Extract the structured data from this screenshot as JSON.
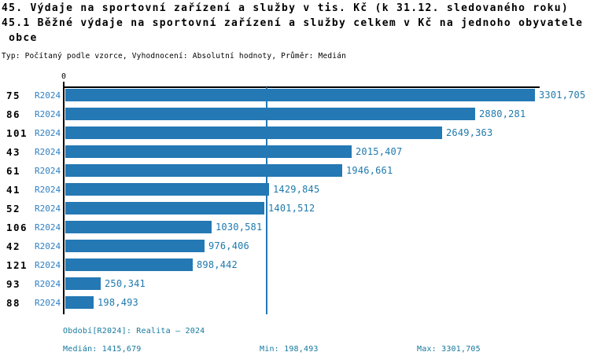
{
  "header": {
    "title_line1": "45. Výdaje na sportovní zařízení a služby v tis. Kč (k 31.12. sledovaného roku)",
    "title_line2": "45.1 Běžné výdaje na sportovní zařízení a služby celkem v Kč na jednoho obyvatele",
    "title_line3": " obce",
    "meta": "Typ: Počítaný podle vzorce, Vyhodnocení: Absolutní hodnoty, Průměr: Medián"
  },
  "chart_data": {
    "type": "bar",
    "orientation": "horizontal",
    "title": "45.1 Běžné výdaje na sportovní zařízení a služby celkem v Kč na jednoho obyvatele obce",
    "axis_origin_label": "0",
    "categories": [
      "75",
      "86",
      "101",
      "43",
      "61",
      "41",
      "52",
      "106",
      "42",
      "121",
      "93",
      "88"
    ],
    "series_label": "R2024",
    "values": [
      3301.705,
      2880.281,
      2649.363,
      2015.407,
      1946.661,
      1429.845,
      1401.512,
      1030.581,
      976.406,
      898.442,
      250.341,
      198.493
    ],
    "value_labels": [
      "3301,705",
      "2880,281",
      "2649,363",
      "2015,407",
      "1946,661",
      "1429,845",
      "1401,512",
      "1030,581",
      "976,406",
      "898,442",
      "250,341",
      "198,493"
    ],
    "xlim": [
      0,
      3301.705
    ],
    "median_value": 1415.679,
    "grid": false,
    "legend_position": "none"
  },
  "footer": {
    "period": "Období[R2024]: Realita – 2024",
    "median": "Medián: 1415,679",
    "min": "Min: 198,493",
    "max": "Max: 3301,705"
  },
  "colors": {
    "bar": "#2478b4",
    "median_line": "#2478b4",
    "series_label": "#2d7fc3",
    "value_label": "#1f79ad",
    "footer_text": "#16789e",
    "text": "#000000"
  }
}
